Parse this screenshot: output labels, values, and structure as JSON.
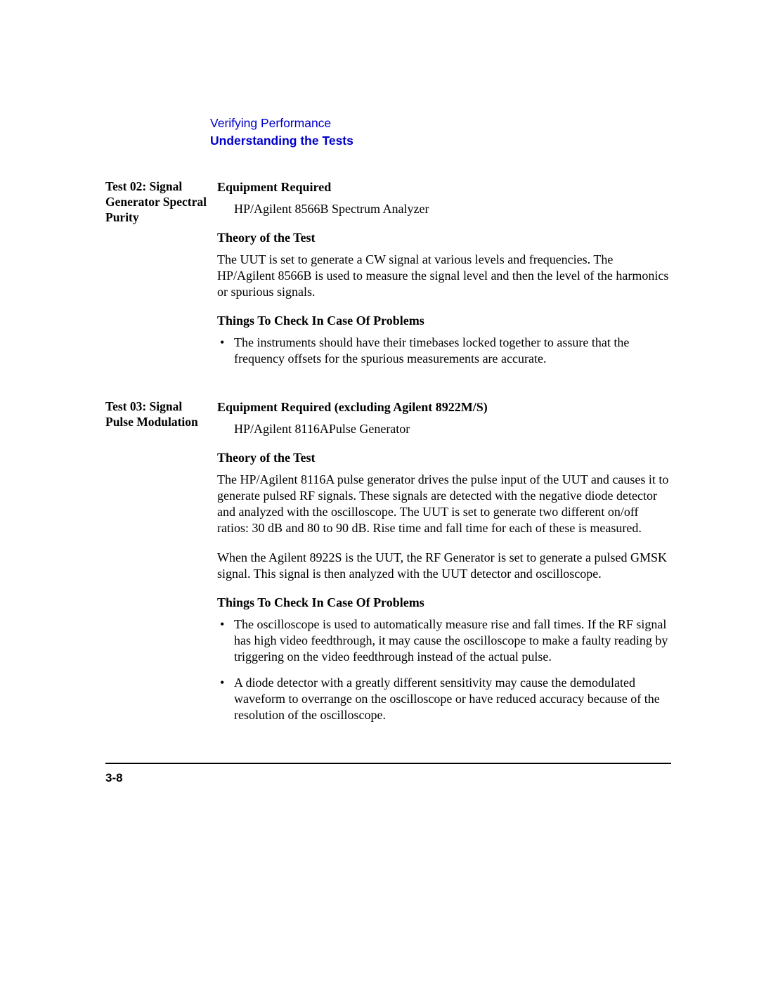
{
  "header": {
    "breadcrumb": "Verifying Performance",
    "subhead": "Understanding the Tests"
  },
  "sections": [
    {
      "side": "Test 02: Signal Generator Spectral Purity",
      "blocks": [
        {
          "type": "h3",
          "text": "Equipment Required"
        },
        {
          "type": "indent",
          "text": "HP/Agilent 8566B Spectrum Analyzer"
        },
        {
          "type": "h3",
          "text": "Theory of the Test"
        },
        {
          "type": "para",
          "text": "The UUT is set to generate a CW signal at various levels and frequencies. The HP/Agilent 8566B is used to measure the signal level and then the level of the harmonics or spurious signals."
        },
        {
          "type": "h3",
          "text": "Things To Check In Case Of Problems"
        },
        {
          "type": "bullets",
          "items": [
            "The instruments should have their timebases locked together to assure that the frequency offsets for the spurious measurements are accurate."
          ]
        }
      ]
    },
    {
      "side": "Test 03: Signal Pulse Modulation",
      "blocks": [
        {
          "type": "h3",
          "text": "Equipment Required (excluding Agilent 8922M/S)"
        },
        {
          "type": "indent",
          "text": "HP/Agilent 8116APulse Generator"
        },
        {
          "type": "h3",
          "text": "Theory of the Test"
        },
        {
          "type": "para",
          "text": "The HP/Agilent 8116A pulse generator drives the pulse input of the UUT and causes it to generate pulsed RF signals. These signals are detected with the negative diode detector and analyzed with the oscilloscope. The UUT is set to generate two different on/off ratios: 30 dB and 80 to 90 dB. Rise time and fall time for each of these is measured."
        },
        {
          "type": "para",
          "text": "When the Agilent 8922S is the UUT, the RF Generator is set to generate a pulsed GMSK signal. This signal is then analyzed with the UUT detector and oscilloscope."
        },
        {
          "type": "h3",
          "text": "Things To Check In Case Of Problems"
        },
        {
          "type": "bullets",
          "items": [
            "The oscilloscope is used to automatically measure rise and fall times. If the RF signal has high video feedthrough, it may cause the oscilloscope to make a faulty reading by triggering on the video feedthrough instead of the actual pulse.",
            "A diode detector with a greatly different sensitivity may cause the demodulated waveform to overrange on the oscilloscope or have reduced accuracy because of the resolution of the oscilloscope."
          ]
        }
      ]
    }
  ],
  "footer": {
    "page": "3-8"
  }
}
